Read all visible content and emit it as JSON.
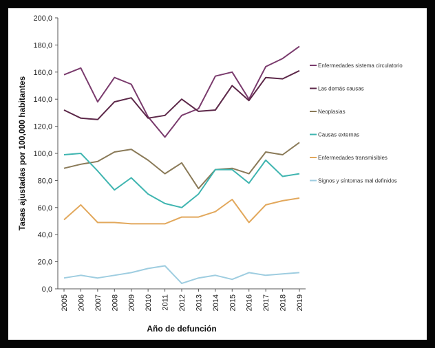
{
  "chart_data": {
    "type": "line",
    "title": "",
    "xlabel": "Año de defunción",
    "ylabel": "Tasas ajustadas por 100,000 habitantes",
    "ylim": [
      0,
      200
    ],
    "yticks": [
      "0,0",
      "20,0",
      "40,0",
      "60,0",
      "80,0",
      "100,0",
      "120,0",
      "140,0",
      "160,0",
      "180,0",
      "200,0"
    ],
    "categories": [
      "2005",
      "2006",
      "2007",
      "2008",
      "2009",
      "2010",
      "2011",
      "2012",
      "2013",
      "2014",
      "2015",
      "2016",
      "2017",
      "2018",
      "2019"
    ],
    "legend_position": "right",
    "series": [
      {
        "name": "Enfermedades sistema circulatorio",
        "color": "#7a3b6d",
        "values": [
          158,
          163,
          138,
          156,
          151,
          127,
          112,
          128,
          133,
          157,
          160,
          140,
          164,
          170,
          179
        ]
      },
      {
        "name": "Las demás causas",
        "color": "#5c2748",
        "values": [
          132,
          126,
          125,
          138,
          141,
          126,
          128,
          140,
          131,
          132,
          150,
          139,
          156,
          155,
          161
        ]
      },
      {
        "name": "Neoplasias",
        "color": "#8a7a58",
        "values": [
          89,
          92,
          94,
          101,
          103,
          95,
          85,
          93,
          74,
          88,
          89,
          85,
          101,
          99,
          108
        ]
      },
      {
        "name": "Causas externas",
        "color": "#3fb5b0",
        "values": [
          99,
          100,
          87,
          73,
          82,
          70,
          63,
          60,
          70,
          88,
          88,
          78,
          95,
          83,
          85
        ]
      },
      {
        "name": "Enfermedades transmisibles",
        "color": "#e2a85c",
        "values": [
          51,
          62,
          49,
          49,
          48,
          48,
          48,
          53,
          53,
          57,
          66,
          49,
          62,
          65,
          67
        ]
      },
      {
        "name": "Signos y síntomas mal definidos",
        "color": "#9ecde0",
        "values": [
          8,
          10,
          8,
          10,
          12,
          15,
          17,
          4,
          8,
          10,
          7,
          12,
          10,
          11,
          12
        ]
      }
    ]
  }
}
